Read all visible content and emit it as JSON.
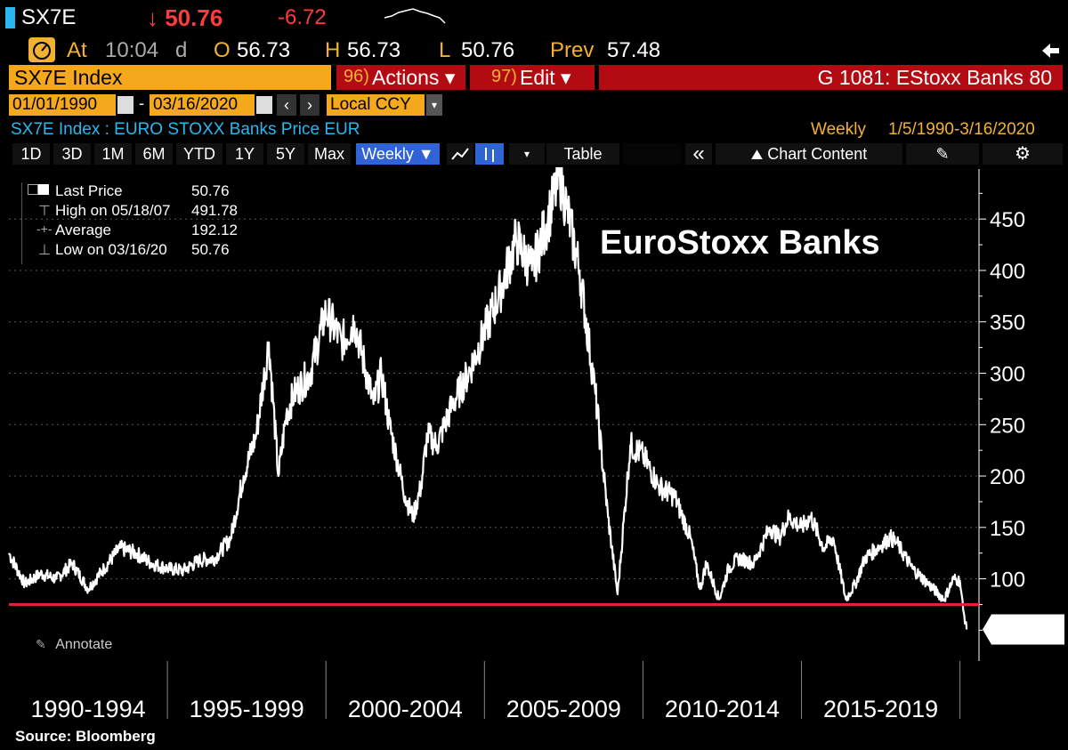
{
  "header": {
    "ticker": "SX7E",
    "last": "↓ 50.76",
    "change": "-6.72",
    "at_label": "At",
    "time": "10:04",
    "time_suffix": "d",
    "open_label": "O",
    "open": "56.73",
    "high_label": "H",
    "high": "56.73",
    "low_label": "L",
    "low": "50.76",
    "prev_label": "Prev",
    "prev": "57.48"
  },
  "command_bar": {
    "security": "SX7E Index",
    "actions_num": "96)",
    "actions_label": "Actions ▾",
    "edit_num": "97)",
    "edit_label": "Edit ▾",
    "graph_title": "G 1081: EStoxx Banks 80"
  },
  "range_bar": {
    "start_date": "01/01/1990",
    "end_date": "03/16/2020",
    "currency": "Local CCY",
    "dash": "-"
  },
  "info_bar": {
    "description": "SX7E Index : EURO STOXX Banks Price EUR",
    "periodicity": "Weekly",
    "date_range": "1/5/1990-3/16/2020"
  },
  "toolbar": {
    "buttons": [
      "1D",
      "3D",
      "1M",
      "6M",
      "YTD",
      "1Y",
      "5Y",
      "Max"
    ],
    "frequency": "Weekly ▼",
    "table": "Table",
    "collapse": "«",
    "chart_content": "Chart Content",
    "settings_icon": "gear-icon"
  },
  "legend": {
    "items": [
      {
        "label": "Last Price",
        "value": "50.76"
      },
      {
        "label": "High on 05/18/07",
        "value": "491.78"
      },
      {
        "label": "Average",
        "value": "192.12"
      },
      {
        "label": "Low on 03/16/20",
        "value": "50.76"
      }
    ]
  },
  "annotate_label": "Annotate",
  "source": "Source: Bloomberg",
  "colors": {
    "amber": "#f2b134",
    "orange": "#f6a81c",
    "red_bar": "#b20b12",
    "red_line": "#e3213b",
    "selected": "#2f63d6",
    "down_red": "#ff3b3b"
  },
  "chart_data": {
    "type": "line",
    "title": "EuroStoxx Banks",
    "series": [
      {
        "name": "Last Price",
        "x": [
          1990.0,
          1990.5,
          1991.0,
          1991.5,
          1992.0,
          1992.5,
          1993.0,
          1993.5,
          1994.0,
          1994.5,
          1995.0,
          1995.5,
          1996.0,
          1996.5,
          1997.0,
          1997.4,
          1997.8,
          1998.2,
          1998.5,
          1998.75,
          1999.0,
          1999.5,
          2000.0,
          2000.5,
          2000.9,
          2001.5,
          2001.75,
          2002.0,
          2002.5,
          2002.75,
          2003.0,
          2003.2,
          2003.5,
          2004.0,
          2004.5,
          2005.0,
          2005.5,
          2006.0,
          2006.5,
          2007.0,
          2007.38,
          2007.6,
          2008.0,
          2008.5,
          2008.9,
          2009.2,
          2009.6,
          2010.0,
          2010.5,
          2011.0,
          2011.5,
          2011.8,
          2012.0,
          2012.4,
          2012.7,
          2013.0,
          2013.5,
          2014.0,
          2014.3,
          2014.6,
          2015.0,
          2015.3,
          2015.7,
          2016.0,
          2016.4,
          2016.7,
          2017.0,
          2017.4,
          2017.8,
          2018.0,
          2018.5,
          2019.0,
          2019.5,
          2019.8,
          2020.0,
          2020.1,
          2020.21
        ],
        "values": [
          125,
          95,
          105,
          100,
          115,
          90,
          110,
          130,
          125,
          115,
          110,
          108,
          118,
          120,
          140,
          200,
          240,
          330,
          200,
          260,
          280,
          300,
          360,
          330,
          350,
          270,
          300,
          250,
          180,
          160,
          190,
          240,
          230,
          270,
          300,
          340,
          380,
          430,
          400,
          450,
          491.78,
          460,
          400,
          280,
          160,
          85,
          230,
          220,
          190,
          180,
          140,
          90,
          115,
          80,
          110,
          120,
          115,
          150,
          140,
          160,
          150,
          160,
          130,
          140,
          80,
          95,
          120,
          130,
          140,
          135,
          110,
          95,
          80,
          100,
          98,
          70,
          50.76
        ]
      }
    ],
    "horizontal_line": {
      "value": 75,
      "color": "#e3213b"
    },
    "last_value_label": "50.76",
    "y_ticks": [
      100,
      150,
      200,
      250,
      300,
      350,
      400,
      450
    ],
    "ylim": [
      20,
      490
    ],
    "xlim": [
      1990.0,
      2020.6
    ],
    "x_periods": [
      "1990-1994",
      "1995-1999",
      "2000-2004",
      "2005-2009",
      "2010-2014",
      "2015-2019"
    ],
    "xlabel": "",
    "ylabel": "",
    "grid": true,
    "legend_position": "top-left"
  }
}
